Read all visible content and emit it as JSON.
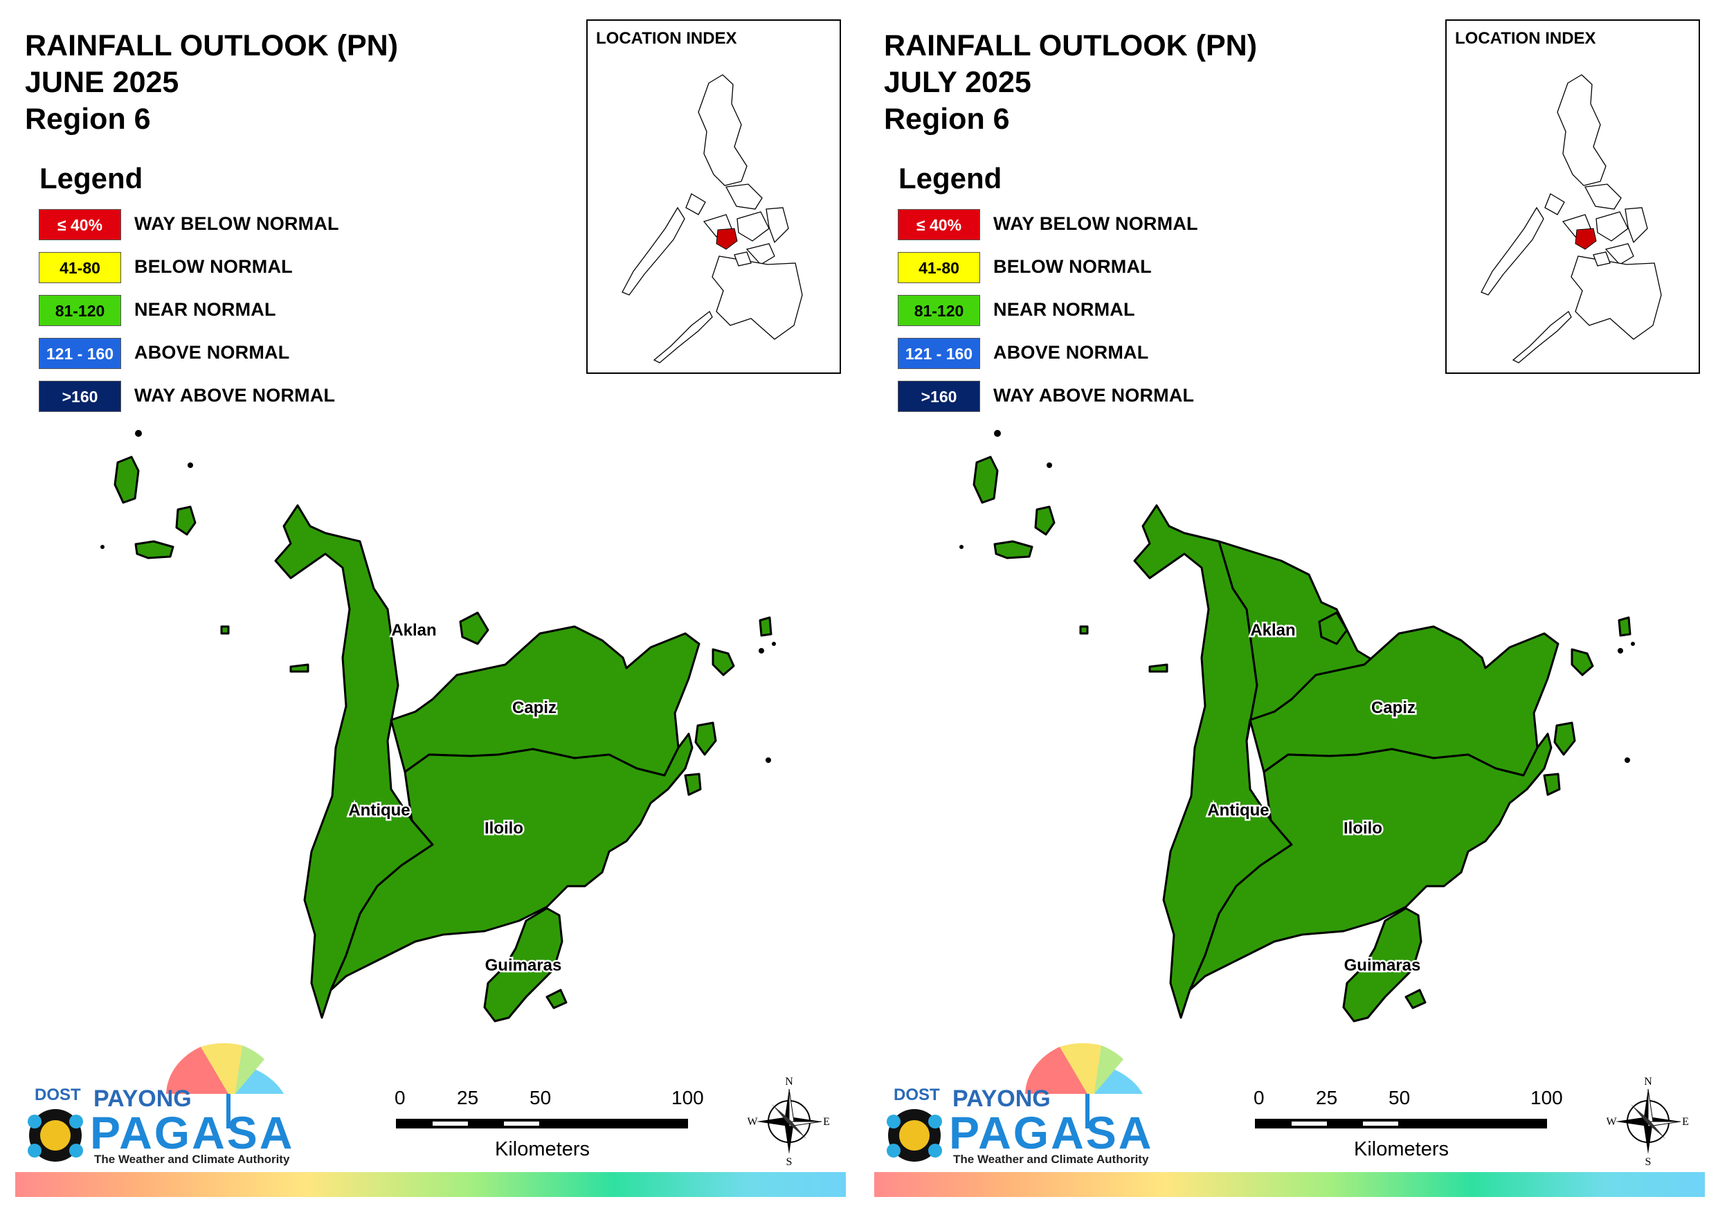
{
  "colors": {
    "way_below": "#e0000e",
    "below": "#ffff00",
    "near": "#44d40c",
    "above": "#1f65e0",
    "way_above": "#06246a",
    "province_fill": "#2f9a06",
    "inset_highlight": "#cc0000"
  },
  "panels": [
    {
      "title_line1": "RAINFALL OUTLOOK (PN)",
      "title_line2": "JUNE 2025",
      "title_line3": "Region 6"
    },
    {
      "title_line1": "RAINFALL OUTLOOK (PN)",
      "title_line2": "JULY 2025",
      "title_line3": "Region 6"
    }
  ],
  "legend": {
    "title": "Legend",
    "items": [
      {
        "range": "≤ 40%",
        "label": "WAY BELOW NORMAL"
      },
      {
        "range": "41-80",
        "label": "BELOW NORMAL"
      },
      {
        "range": "81-120",
        "label": "NEAR NORMAL"
      },
      {
        "range": "121 - 160",
        "label": "ABOVE NORMAL"
      },
      {
        "range": ">160",
        "label": "WAY ABOVE NORMAL"
      }
    ]
  },
  "inset": {
    "title": "LOCATION INDEX"
  },
  "provinces": [
    {
      "name": "Aklan",
      "category": "NEAR NORMAL"
    },
    {
      "name": "Capiz",
      "category": "NEAR NORMAL"
    },
    {
      "name": "Antique",
      "category": "NEAR NORMAL"
    },
    {
      "name": "Iloilo",
      "category": "NEAR NORMAL"
    },
    {
      "name": "Guimaras",
      "category": "NEAR NORMAL"
    }
  ],
  "scale_bar": {
    "ticks": [
      "0",
      "25",
      "50",
      "100"
    ],
    "unit": "Kilometers"
  },
  "compass": {
    "n": "N",
    "s": "S",
    "e": "E",
    "w": "W"
  },
  "logo": {
    "dost": "DOST",
    "payong": "PAYONG",
    "pagasa": "PAGASA",
    "tagline": "The Weather and Climate Authority"
  }
}
